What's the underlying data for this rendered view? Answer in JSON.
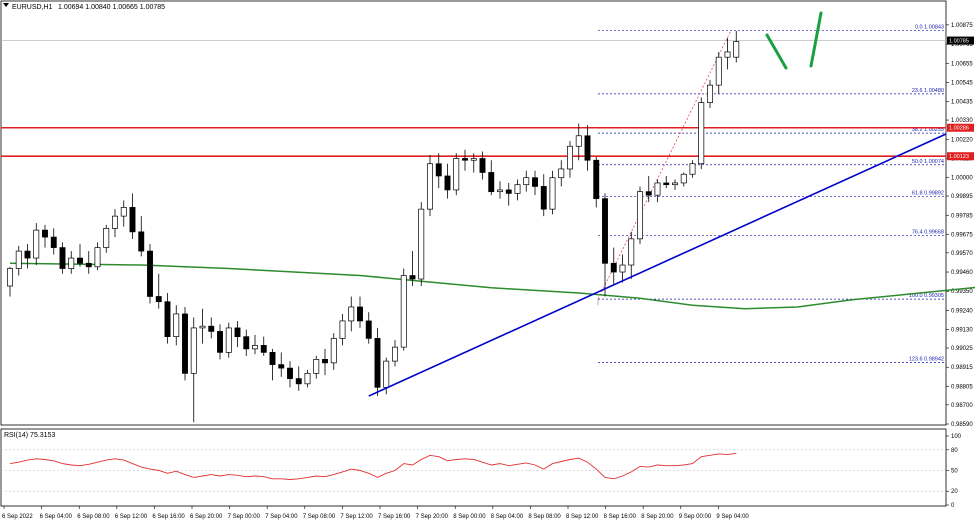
{
  "header": {
    "symbol": "EURUSD,H1",
    "ohlc": "1.00694 1.00840 1.00665 1.00785"
  },
  "rsi_header": "RSI(14) 75.3153",
  "colors": {
    "bull": "#ffffff",
    "bear": "#000000",
    "ma": "#2e8b2e",
    "trendline": "#0000cc",
    "resistance": "#e02020",
    "fib": "#1a1ab0",
    "rsi": "#e03030",
    "arrow": "#1aa040"
  },
  "chart_data": [
    {
      "type": "candlestick",
      "title": "EURUSD,H1",
      "ylim": [
        0.9859,
        1.0092
      ],
      "y_ticks": [
        "1.00875",
        "1.00765",
        "1.00655",
        "1.00545",
        "1.00435",
        "1.00330",
        "1.00220",
        "1.00110",
        "1.00000",
        "0.99895",
        "0.99785",
        "0.99675",
        "0.99570",
        "0.99460",
        "0.99350",
        "0.99240",
        "0.99130",
        "0.99025",
        "0.98915",
        "0.98805",
        "0.98700",
        "0.98590"
      ],
      "x_ticks": [
        "6 Sep 2022",
        "6 Sep 04:00",
        "6 Sep 08:00",
        "6 Sep 12:00",
        "6 Sep 16:00",
        "6 Sep 20:00",
        "7 Sep 00:00",
        "7 Sep 04:00",
        "7 Sep 08:00",
        "7 Sep 12:00",
        "7 Sep 16:00",
        "7 Sep 20:00",
        "8 Sep 00:00",
        "8 Sep 04:00",
        "8 Sep 08:00",
        "8 Sep 12:00",
        "8 Sep 16:00",
        "8 Sep 20:00",
        "9 Sep 00:00",
        "9 Sep 04:00"
      ],
      "current_price": "1.00785",
      "candles": [
        [
          0.9938,
          0.9949,
          0.9932,
          0.9948
        ],
        [
          0.9948,
          0.9961,
          0.9944,
          0.9958
        ],
        [
          0.9958,
          0.9962,
          0.9948,
          0.9954
        ],
        [
          0.9954,
          0.9974,
          0.995,
          0.997
        ],
        [
          0.997,
          0.9973,
          0.996,
          0.9966
        ],
        [
          0.9966,
          0.9971,
          0.9956,
          0.996
        ],
        [
          0.996,
          0.9963,
          0.9945,
          0.9948
        ],
        [
          0.9948,
          0.9958,
          0.9945,
          0.9954
        ],
        [
          0.9954,
          0.9962,
          0.9949,
          0.9951
        ],
        [
          0.9951,
          0.9958,
          0.9945,
          0.9949
        ],
        [
          0.9949,
          0.9963,
          0.9947,
          0.996
        ],
        [
          0.996,
          0.9973,
          0.9957,
          0.9971
        ],
        [
          0.9971,
          0.9982,
          0.9966,
          0.9978
        ],
        [
          0.9978,
          0.9987,
          0.9972,
          0.9983
        ],
        [
          0.9983,
          0.9991,
          0.9965,
          0.9969
        ],
        [
          0.9969,
          0.9978,
          0.9955,
          0.9958
        ],
        [
          0.9958,
          0.9962,
          0.9928,
          0.9932
        ],
        [
          0.9932,
          0.9945,
          0.9925,
          0.9929
        ],
        [
          0.9929,
          0.9934,
          0.9905,
          0.9909
        ],
        [
          0.9909,
          0.9927,
          0.9904,
          0.9922
        ],
        [
          0.9922,
          0.9926,
          0.9884,
          0.9888
        ],
        [
          0.9888,
          0.992,
          0.986,
          0.9914
        ],
        [
          0.9914,
          0.9925,
          0.9905,
          0.9915
        ],
        [
          0.9915,
          0.992,
          0.9908,
          0.9912
        ],
        [
          0.9912,
          0.9916,
          0.9896,
          0.99
        ],
        [
          0.99,
          0.9917,
          0.9897,
          0.9914
        ],
        [
          0.9914,
          0.9918,
          0.9903,
          0.9909
        ],
        [
          0.9909,
          0.9913,
          0.9898,
          0.9902
        ],
        [
          0.9902,
          0.991,
          0.9899,
          0.9904
        ],
        [
          0.9904,
          0.9909,
          0.9898,
          0.99
        ],
        [
          0.99,
          0.9902,
          0.9884,
          0.9893
        ],
        [
          0.9893,
          0.99,
          0.9886,
          0.9891
        ],
        [
          0.9891,
          0.9895,
          0.988,
          0.9885
        ],
        [
          0.9885,
          0.9892,
          0.9878,
          0.9882
        ],
        [
          0.9882,
          0.989,
          0.988,
          0.9888
        ],
        [
          0.9888,
          0.9898,
          0.9885,
          0.9896
        ],
        [
          0.9896,
          0.9902,
          0.9887,
          0.9894
        ],
        [
          0.9894,
          0.9911,
          0.989,
          0.9908
        ],
        [
          0.9908,
          0.9922,
          0.9904,
          0.9918
        ],
        [
          0.9918,
          0.9932,
          0.9912,
          0.9926
        ],
        [
          0.9926,
          0.9932,
          0.9914,
          0.9918
        ],
        [
          0.9918,
          0.9923,
          0.9905,
          0.9908
        ],
        [
          0.9908,
          0.9914,
          0.9875,
          0.988
        ],
        [
          0.988,
          0.9897,
          0.9876,
          0.9895
        ],
        [
          0.9895,
          0.9907,
          0.9892,
          0.9903
        ],
        [
          0.9903,
          0.9948,
          0.9901,
          0.9944
        ],
        [
          0.9944,
          0.9958,
          0.9938,
          0.9942
        ],
        [
          0.9942,
          0.9986,
          0.9938,
          0.9982
        ],
        [
          0.9982,
          1.0013,
          0.9978,
          1.0008
        ],
        [
          1.0008,
          1.0014,
          0.9994,
          1.0001
        ],
        [
          1.0001,
          1.0008,
          0.9988,
          0.9993
        ],
        [
          0.9993,
          1.0014,
          0.999,
          1.0011
        ],
        [
          1.0011,
          1.0016,
          1.0004,
          1.001
        ],
        [
          1.001,
          1.0014,
          1.0003,
          1.0011
        ],
        [
          1.0011,
          1.0015,
          0.9999,
          1.0003
        ],
        [
          1.0003,
          1.001,
          0.999,
          0.9992
        ],
        [
          0.9992,
          0.9998,
          0.9988,
          0.9993
        ],
        [
          0.9993,
          0.9997,
          0.9984,
          0.9991
        ],
        [
          0.9991,
          0.9999,
          0.9987,
          0.9996
        ],
        [
          0.9996,
          1.0004,
          0.9992,
          1.0
        ],
        [
          1.0,
          1.0004,
          0.999,
          0.9995
        ],
        [
          0.9995,
          1.0002,
          0.9978,
          0.9982
        ],
        [
          0.9982,
          1.0004,
          0.9979,
          1.0
        ],
        [
          1.0,
          1.001,
          0.9995,
          1.0005
        ],
        [
          1.0005,
          1.0021,
          1.0,
          1.0018
        ],
        [
          1.0018,
          1.0031,
          1.001,
          1.0024
        ],
        [
          1.0024,
          1.003,
          1.0004,
          1.001
        ],
        [
          1.001,
          1.0012,
          0.9983,
          0.9988
        ],
        [
          0.9988,
          0.9991,
          0.9932,
          0.9951
        ],
        [
          0.9951,
          0.996,
          0.9939,
          0.9946
        ],
        [
          0.9946,
          0.9956,
          0.994,
          0.995
        ],
        [
          0.995,
          0.9969,
          0.9942,
          0.9965
        ],
        [
          0.9965,
          0.9995,
          0.9962,
          0.9992
        ],
        [
          0.9992,
          1.0001,
          0.9986,
          0.999
        ],
        [
          0.999,
          0.9999,
          0.9986,
          0.9997
        ],
        [
          0.9997,
          1.0001,
          0.9994,
          0.9996
        ],
        [
          0.9996,
          0.9999,
          0.9993,
          0.9997
        ],
        [
          0.9997,
          1.0003,
          0.9995,
          1.0002
        ],
        [
          1.0002,
          1.001,
          1.0,
          1.0008
        ],
        [
          1.0008,
          1.0046,
          1.0005,
          1.0043
        ],
        [
          1.0043,
          1.0056,
          1.004,
          1.0053
        ],
        [
          1.0053,
          1.0072,
          1.0048,
          1.0069
        ],
        [
          1.0069,
          1.008,
          1.0062,
          1.0072
        ],
        [
          1.0069,
          1.0084,
          1.0066,
          1.0078
        ]
      ],
      "moving_average": [
        [
          0,
          0.9951
        ],
        [
          15,
          0.995
        ],
        [
          25,
          0.9948
        ],
        [
          40,
          0.9944
        ],
        [
          55,
          0.9937
        ],
        [
          65,
          0.9934
        ],
        [
          72,
          0.9931
        ],
        [
          78,
          0.9927
        ],
        [
          84,
          0.9925
        ],
        [
          90,
          0.9926
        ],
        [
          96,
          0.993
        ],
        [
          104,
          0.9934
        ],
        [
          112,
          0.9938
        ],
        [
          120,
          0.9942
        ],
        [
          128,
          0.9949
        ],
        [
          136,
          0.996
        ],
        [
          140,
          0.9966
        ]
      ],
      "fibonacci": [
        {
          "label": "0.0 1.00843",
          "price": 1.00843
        },
        {
          "label": "23.6 1.00480",
          "price": 1.0048
        },
        {
          "label": "38.2 1.00255",
          "price": 1.00255
        },
        {
          "label": "50.0 1.00074",
          "price": 1.00074
        },
        {
          "label": "61.8 0.99892",
          "price": 0.99892
        },
        {
          "label": "76.4 0.99668",
          "price": 0.99668
        },
        {
          "label": "100.0 0.99305",
          "price": 0.99305
        },
        {
          "label": "123.6 0.98942",
          "price": 0.98942
        }
      ],
      "resistance_levels": [
        {
          "label": "1.00286",
          "price": 1.00286
        },
        {
          "label": "1.00123",
          "price": 1.00123
        }
      ]
    },
    {
      "type": "line",
      "title": "RSI(14) 75.3153",
      "ylim": [
        0,
        100
      ],
      "y_ticks": [
        "100",
        "80",
        "50",
        "20",
        "0"
      ],
      "values": [
        60,
        62,
        65,
        67,
        66,
        64,
        60,
        58,
        57,
        59,
        62,
        65,
        67,
        65,
        60,
        55,
        52,
        50,
        46,
        49,
        44,
        40,
        42,
        44,
        42,
        44,
        43,
        41,
        42,
        41,
        38,
        38,
        37,
        38,
        40,
        42,
        41,
        44,
        48,
        52,
        50,
        46,
        40,
        46,
        50,
        60,
        58,
        66,
        72,
        70,
        64,
        66,
        67,
        66,
        62,
        58,
        60,
        57,
        59,
        61,
        58,
        52,
        60,
        63,
        66,
        68,
        62,
        52,
        40,
        38,
        42,
        48,
        56,
        55,
        58,
        57,
        57,
        58,
        60,
        70,
        72,
        74,
        73,
        75
      ]
    }
  ]
}
